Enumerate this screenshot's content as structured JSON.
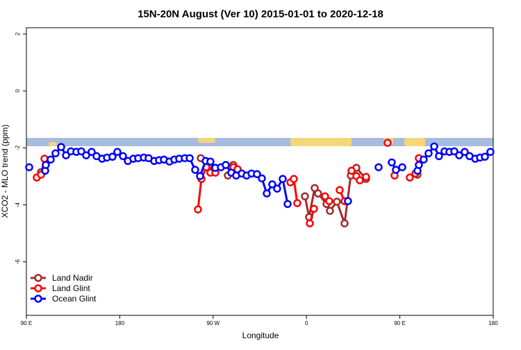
{
  "chart_data": {
    "type": "line",
    "title": "15N-20N August (Ver 10)   2015-01-01 to 2020-12-18",
    "x_label": "Longitude",
    "y_label": "XCO2 - MLO trend (ppm)",
    "xlim": [
      90,
      540
    ],
    "ylim": [
      -7.88,
      2.22
    ],
    "xticks": [
      {
        "value": 90,
        "label": "90 E"
      },
      {
        "value": 180,
        "label": "180"
      },
      {
        "value": 270,
        "label": "90 W"
      },
      {
        "value": 360,
        "label": "0"
      },
      {
        "value": 450,
        "label": "90 E"
      },
      {
        "value": 540,
        "label": "180"
      }
    ],
    "yticks": [
      2,
      0,
      -2,
      -4,
      -6
    ],
    "legend": "bottomleft",
    "series": [
      {
        "name": "Land Nadir",
        "color": "#a52a2a",
        "x": [
          104.1,
          null,
          258.1,
          265.4,
          null,
          284.2,
          289.5,
          null,
          358.5,
          362.5,
          367.9,
          371.2,
          379.3,
          382.6,
          389.3,
          396.7,
          402.7,
          408.1,
          417.4,
          null,
          467.0
        ],
        "values": [
          -2.85,
          null,
          -2.36,
          -2.65,
          null,
          -2.97,
          -2.6,
          null,
          -3.7,
          -4.43,
          -3.41,
          -3.6,
          -3.97,
          -4.21,
          -3.89,
          -4.65,
          -2.97,
          -2.7,
          -3.09,
          null,
          -2.94
        ]
      },
      {
        "name": "Land Glint",
        "color": "#ff0000",
        "x": [
          100.0,
          104.1,
          107.4,
          null,
          255.4,
          258.7,
          263.4,
          267.4,
          272.1,
          null,
          289.5,
          293.6,
          null,
          344.5,
          347.8,
          351.1,
          null,
          363.2,
          367.2,
          null,
          377.9,
          381.9,
          null,
          392.0,
          396.7,
          null,
          403.4,
          408.1,
          411.4,
          417.4,
          null,
          438.2,
          null,
          444.9,
          null,
          459.6,
          465.0,
          468.3
        ],
        "values": [
          -3.04,
          -2.94,
          -2.38,
          null,
          -4.16,
          -3.09,
          -2.68,
          -2.87,
          -2.87,
          null,
          -2.68,
          -2.75,
          null,
          -3.21,
          -3.09,
          -3.94,
          null,
          -4.65,
          -4.14,
          null,
          -3.7,
          -3.87,
          null,
          -3.48,
          -3.87,
          null,
          -2.8,
          -2.99,
          -3.14,
          -3.02,
          null,
          -1.82,
          null,
          -2.97,
          null,
          -3.04,
          -2.9,
          -2.36
        ]
      },
      {
        "name": "Ocean Glint",
        "color": "#0000ff",
        "x": [
          92.7,
          null,
          108.1,
          108.7,
          113.4,
          118.1,
          123.5,
          128.2,
          132.9,
          138.2,
          142.9,
          147.6,
          152.9,
          157.6,
          163.0,
          167.7,
          173.0,
          177.7,
          183.1,
          187.8,
          193.1,
          197.8,
          203.2,
          207.8,
          213.2,
          217.9,
          222.6,
          227.9,
          232.6,
          237.3,
          242.7,
          247.4,
          252.7,
          257.4,
          262.8,
          267.4,
          272.1,
          277.5,
          282.2,
          287.5,
          292.2,
          297.6,
          302.3,
          307.0,
          312.3,
          317.0,
          321.7,
          327.0,
          331.7,
          337.1,
          341.8,
          null,
          400.0,
          null,
          429.5,
          null,
          442.2,
          446.2,
          452.3,
          null,
          467.0,
          468.3,
          473.0,
          477.7,
          483.1,
          487.7,
          493.1,
          497.8,
          502.5,
          507.2,
          512.5,
          517.2,
          522.6,
          527.3,
          532.0,
          537.3
        ],
        "values": [
          -2.68,
          null,
          -2.8,
          -2.6,
          -2.41,
          -2.19,
          -1.97,
          -2.26,
          -2.12,
          -2.14,
          -2.12,
          -2.26,
          -2.14,
          -2.29,
          -2.38,
          -2.34,
          -2.31,
          -2.14,
          -2.29,
          -2.46,
          -2.38,
          -2.36,
          -2.34,
          -2.36,
          -2.46,
          -2.43,
          -2.41,
          -2.48,
          -2.41,
          -2.38,
          -2.36,
          -2.36,
          -2.77,
          -2.99,
          -2.46,
          -2.48,
          -2.7,
          -2.68,
          -2.6,
          -2.87,
          -2.97,
          -2.9,
          -2.97,
          -2.9,
          -2.92,
          -3.07,
          -3.6,
          -3.28,
          -3.43,
          -3.09,
          -3.97,
          null,
          -3.87,
          null,
          -2.68,
          null,
          -2.51,
          -2.77,
          -2.68,
          null,
          -2.8,
          -2.6,
          -2.41,
          -2.19,
          -1.95,
          -2.29,
          -2.12,
          -2.14,
          -2.12,
          -2.26,
          -2.14,
          -2.29,
          -2.38,
          -2.34,
          -2.31,
          -2.14
        ]
      }
    ]
  }
}
